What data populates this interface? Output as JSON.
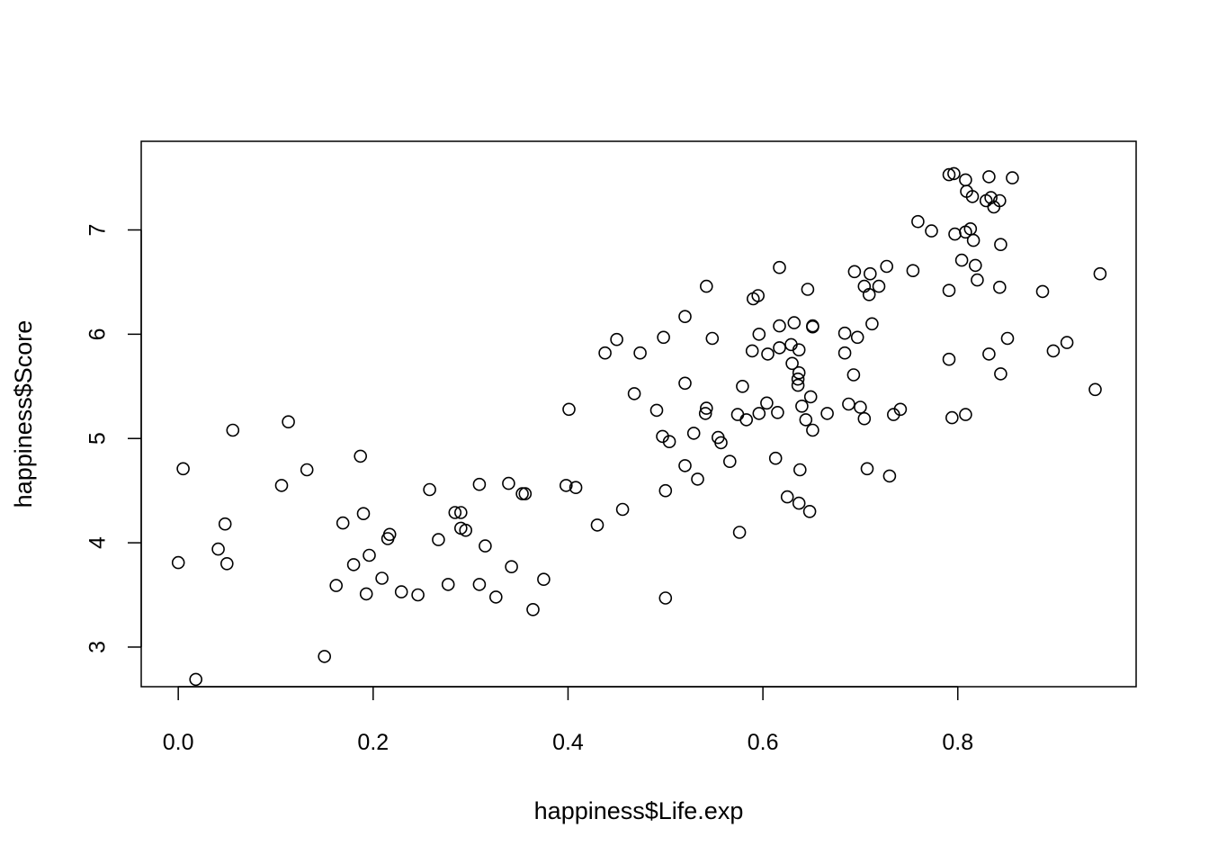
{
  "chart_data": {
    "type": "scatter",
    "title": "",
    "xlabel": "happiness$Life.exp",
    "ylabel": "happiness$Score",
    "xlim": [
      -0.038,
      0.983
    ],
    "ylim": [
      2.62,
      7.85
    ],
    "x_ticks": [
      0.0,
      0.2,
      0.4,
      0.6,
      0.8
    ],
    "x_tick_labels": [
      "0.0",
      "0.2",
      "0.4",
      "0.6",
      "0.8"
    ],
    "y_ticks": [
      3,
      4,
      5,
      6,
      7
    ],
    "y_tick_labels": [
      "3",
      "4",
      "5",
      "6",
      "7"
    ],
    "grid": false,
    "marker": "open-circle",
    "colors": {
      "points": "#000000",
      "frame": "#000000",
      "background": "#ffffff"
    },
    "points": [
      [
        0.791,
        7.53
      ],
      [
        0.796,
        7.54
      ],
      [
        0.808,
        7.48
      ],
      [
        0.832,
        7.51
      ],
      [
        0.856,
        7.5
      ],
      [
        0.809,
        7.37
      ],
      [
        0.815,
        7.32
      ],
      [
        0.829,
        7.28
      ],
      [
        0.834,
        7.31
      ],
      [
        0.843,
        7.28
      ],
      [
        0.837,
        7.22
      ],
      [
        0.759,
        7.08
      ],
      [
        0.773,
        6.99
      ],
      [
        0.797,
        6.96
      ],
      [
        0.808,
        6.98
      ],
      [
        0.813,
        7.01
      ],
      [
        0.816,
        6.9
      ],
      [
        0.844,
        6.86
      ],
      [
        0.804,
        6.71
      ],
      [
        0.818,
        6.66
      ],
      [
        0.82,
        6.52
      ],
      [
        0.791,
        6.42
      ],
      [
        0.843,
        6.45
      ],
      [
        0.887,
        6.41
      ],
      [
        0.946,
        6.58
      ],
      [
        0.754,
        6.61
      ],
      [
        0.727,
        6.65
      ],
      [
        0.694,
        6.6
      ],
      [
        0.71,
        6.58
      ],
      [
        0.704,
        6.46
      ],
      [
        0.719,
        6.46
      ],
      [
        0.709,
        6.38
      ],
      [
        0.712,
        6.1
      ],
      [
        0.617,
        6.64
      ],
      [
        0.646,
        6.43
      ],
      [
        0.542,
        6.46
      ],
      [
        0.59,
        6.34
      ],
      [
        0.595,
        6.37
      ],
      [
        0.52,
        6.17
      ],
      [
        0.617,
        6.08
      ],
      [
        0.632,
        6.11
      ],
      [
        0.651,
        6.08
      ],
      [
        0.651,
        6.07
      ],
      [
        0.596,
        6.0
      ],
      [
        0.684,
        6.01
      ],
      [
        0.697,
        5.97
      ],
      [
        0.45,
        5.95
      ],
      [
        0.498,
        5.97
      ],
      [
        0.548,
        5.96
      ],
      [
        0.438,
        5.82
      ],
      [
        0.474,
        5.82
      ],
      [
        0.589,
        5.84
      ],
      [
        0.605,
        5.81
      ],
      [
        0.617,
        5.87
      ],
      [
        0.629,
        5.9
      ],
      [
        0.637,
        5.85
      ],
      [
        0.684,
        5.82
      ],
      [
        0.791,
        5.76
      ],
      [
        0.832,
        5.81
      ],
      [
        0.851,
        5.96
      ],
      [
        0.898,
        5.84
      ],
      [
        0.912,
        5.92
      ],
      [
        0.941,
        5.47
      ],
      [
        0.63,
        5.72
      ],
      [
        0.637,
        5.63
      ],
      [
        0.636,
        5.57
      ],
      [
        0.636,
        5.51
      ],
      [
        0.693,
        5.61
      ],
      [
        0.844,
        5.62
      ],
      [
        0.579,
        5.5
      ],
      [
        0.52,
        5.53
      ],
      [
        0.468,
        5.43
      ],
      [
        0.649,
        5.4
      ],
      [
        0.604,
        5.34
      ],
      [
        0.64,
        5.31
      ],
      [
        0.688,
        5.33
      ],
      [
        0.7,
        5.3
      ],
      [
        0.542,
        5.29
      ],
      [
        0.541,
        5.24
      ],
      [
        0.574,
        5.23
      ],
      [
        0.583,
        5.18
      ],
      [
        0.596,
        5.24
      ],
      [
        0.615,
        5.25
      ],
      [
        0.644,
        5.18
      ],
      [
        0.666,
        5.24
      ],
      [
        0.704,
        5.19
      ],
      [
        0.734,
        5.23
      ],
      [
        0.741,
        5.28
      ],
      [
        0.794,
        5.2
      ],
      [
        0.808,
        5.23
      ],
      [
        0.401,
        5.28
      ],
      [
        0.491,
        5.27
      ],
      [
        0.529,
        5.05
      ],
      [
        0.554,
        5.01
      ],
      [
        0.557,
        4.96
      ],
      [
        0.497,
        5.02
      ],
      [
        0.504,
        4.97
      ],
      [
        0.651,
        5.08
      ],
      [
        0.566,
        4.78
      ],
      [
        0.613,
        4.81
      ],
      [
        0.52,
        4.74
      ],
      [
        0.533,
        4.61
      ],
      [
        0.5,
        4.5
      ],
      [
        0.638,
        4.7
      ],
      [
        0.707,
        4.71
      ],
      [
        0.73,
        4.64
      ],
      [
        0.625,
        4.44
      ],
      [
        0.637,
        4.38
      ],
      [
        0.648,
        4.3
      ],
      [
        0.456,
        4.32
      ],
      [
        0.43,
        4.17
      ],
      [
        0.576,
        4.1
      ],
      [
        0.5,
        3.47
      ],
      [
        0.398,
        4.55
      ],
      [
        0.408,
        4.53
      ],
      [
        0.339,
        4.57
      ],
      [
        0.356,
        4.47
      ],
      [
        0.353,
        4.47
      ],
      [
        0.309,
        4.56
      ],
      [
        0.258,
        4.51
      ],
      [
        0.284,
        4.29
      ],
      [
        0.29,
        4.29
      ],
      [
        0.29,
        4.14
      ],
      [
        0.295,
        4.12
      ],
      [
        0.267,
        4.03
      ],
      [
        0.215,
        4.04
      ],
      [
        0.217,
        4.08
      ],
      [
        0.315,
        3.97
      ],
      [
        0.342,
        3.77
      ],
      [
        0.375,
        3.65
      ],
      [
        0.309,
        3.6
      ],
      [
        0.277,
        3.6
      ],
      [
        0.326,
        3.48
      ],
      [
        0.364,
        3.36
      ],
      [
        0.229,
        3.53
      ],
      [
        0.246,
        3.5
      ],
      [
        0.209,
        3.66
      ],
      [
        0.193,
        3.51
      ],
      [
        0.162,
        3.59
      ],
      [
        0.18,
        3.79
      ],
      [
        0.196,
        3.88
      ],
      [
        0.169,
        4.19
      ],
      [
        0.19,
        4.28
      ],
      [
        0.187,
        4.83
      ],
      [
        0.132,
        4.7
      ],
      [
        0.106,
        4.55
      ],
      [
        0.113,
        5.16
      ],
      [
        0.056,
        5.08
      ],
      [
        0.005,
        4.71
      ],
      [
        0.048,
        4.18
      ],
      [
        0.041,
        3.94
      ],
      [
        0.05,
        3.8
      ],
      [
        0.0,
        3.81
      ],
      [
        0.15,
        2.91
      ],
      [
        0.018,
        2.69
      ]
    ]
  }
}
